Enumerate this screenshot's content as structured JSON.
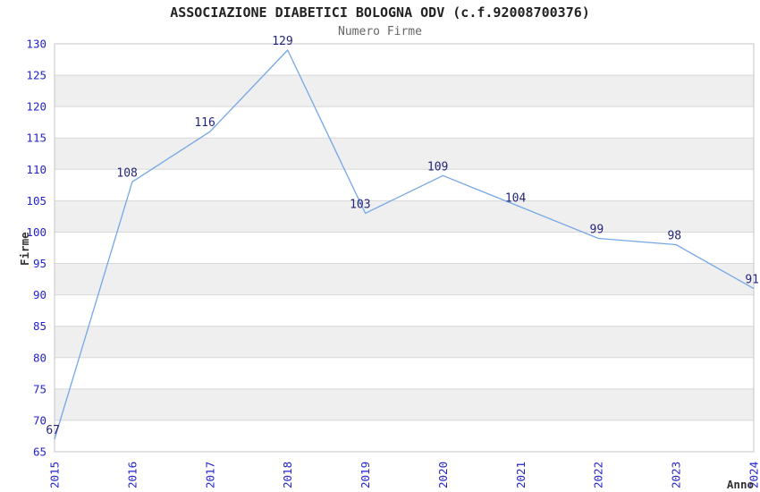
{
  "figure": {
    "title": "ASSOCIAZIONE DIABETICI BOLOGNA ODV (c.f.92008700376)",
    "subtitle": "Numero Firme"
  },
  "chart_data": {
    "type": "line",
    "title": "ASSOCIAZIONE DIABETICI BOLOGNA ODV (c.f.92008700376)",
    "subtitle": "Numero Firme",
    "xlabel": "Anno",
    "ylabel": "Firme",
    "categories": [
      "2015",
      "2016",
      "2017",
      "2018",
      "2019",
      "2020",
      "2021",
      "2022",
      "2023",
      "2024"
    ],
    "values": [
      67,
      108,
      116,
      129,
      103,
      109,
      104,
      99,
      98,
      91
    ],
    "ylim": [
      65,
      130
    ],
    "ytick_step": 5,
    "grid": true,
    "banded_background": true,
    "legend": "none",
    "colors": {
      "line": "#74A7E8",
      "point_label": "#252577",
      "tick_label": "#2323CC",
      "axis_label": "#333333",
      "band": "#EFEFEF",
      "grid": "#D8D8D8",
      "border": "#C6C6C6",
      "title": "#222222",
      "subtitle": "#666666",
      "background": "#FFFFFF"
    }
  }
}
